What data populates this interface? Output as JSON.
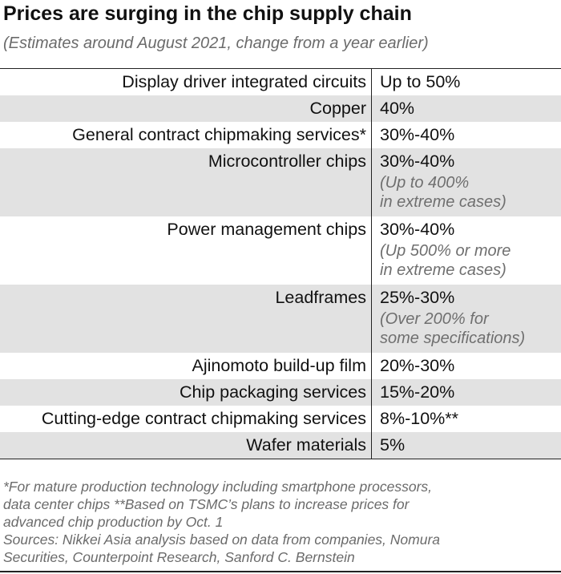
{
  "title": "Prices are surging in the chip supply chain",
  "subtitle": "(Estimates around August 2021, change from a year earlier)",
  "rows": [
    {
      "item": "Display driver integrated circuits",
      "value": "Up to 50%",
      "note": [
        "",
        ""
      ]
    },
    {
      "item": "Copper",
      "value": "40%",
      "note": [
        "",
        ""
      ]
    },
    {
      "item": "General contract chipmaking services*",
      "value": "30%-40%",
      "note": [
        "",
        ""
      ]
    },
    {
      "item": "Microcontroller chips",
      "value": "30%-40%",
      "note": [
        "(Up to 400%",
        "in extreme cases)"
      ]
    },
    {
      "item": "Power management chips",
      "value": "30%-40%",
      "note": [
        "(Up 500% or more",
        "in extreme cases)"
      ]
    },
    {
      "item": "Leadframes",
      "value": "25%-30%",
      "note": [
        "(Over 200% for",
        "some specifications)"
      ]
    },
    {
      "item": "Ajinomoto build-up film",
      "value": "20%-30%",
      "note": [
        "",
        ""
      ]
    },
    {
      "item": "Chip packaging services",
      "value": "15%-20%",
      "note": [
        "",
        ""
      ]
    },
    {
      "item": "Cutting-edge contract chipmaking services",
      "value": "8%-10%**",
      "note": [
        "",
        ""
      ]
    },
    {
      "item": "Wafer materials",
      "value": "5%",
      "note": [
        "",
        ""
      ]
    }
  ],
  "footnotes": {
    "lines": [
      "*For mature production technology including smartphone processors,",
      "data center chips  **Based on TSMC’s plans to increase prices for",
      "advanced chip production by Oct. 1",
      "Sources: Nikkei Asia analysis based on data from companies, Nomura",
      "Securities, Counterpoint Research, Sanford C. Bernstein"
    ]
  }
}
